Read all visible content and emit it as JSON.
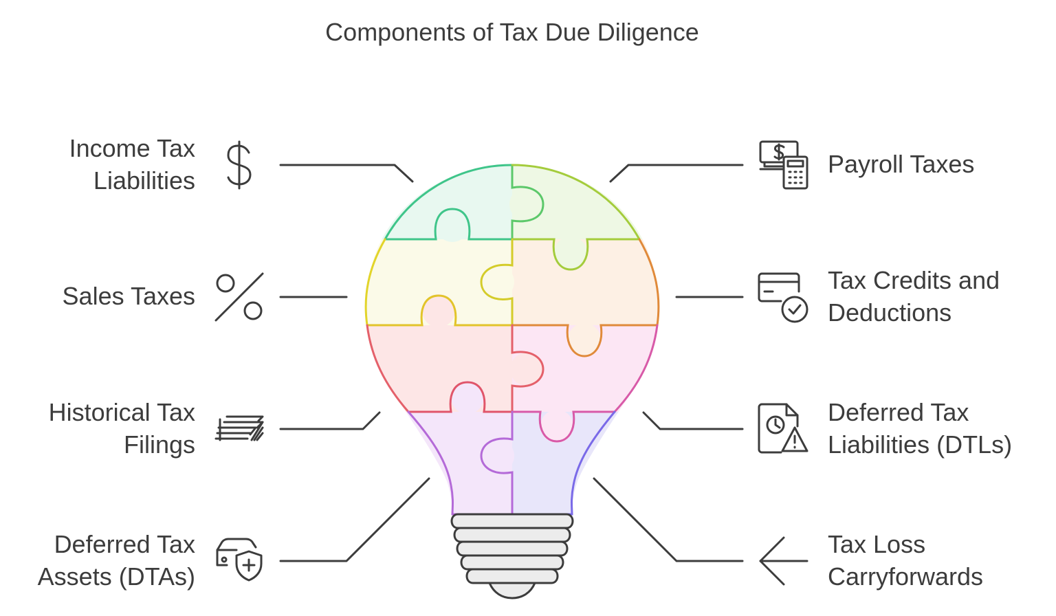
{
  "title": "Components of Tax Due Diligence",
  "left_items": [
    {
      "lines": [
        "Income Tax",
        "Liabilities"
      ],
      "icon": "dollar-sign-icon"
    },
    {
      "lines": [
        "Sales Taxes"
      ],
      "icon": "percent-icon"
    },
    {
      "lines": [
        "Historical Tax",
        "Filings"
      ],
      "icon": "stacked-money-icon"
    },
    {
      "lines": [
        "Deferred Tax",
        "Assets (DTAs)"
      ],
      "icon": "car-shield-icon"
    }
  ],
  "right_items": [
    {
      "lines": [
        "Payroll Taxes"
      ],
      "icon": "money-calculator-icon"
    },
    {
      "lines": [
        "Tax Credits and",
        "Deductions"
      ],
      "icon": "credit-card-check-icon"
    },
    {
      "lines": [
        "Deferred Tax",
        "Liabilities (DTLs)"
      ],
      "icon": "document-clock-warning-icon"
    },
    {
      "lines": [
        "Tax Loss",
        "Carryforwards"
      ],
      "icon": "arrow-left-icon"
    }
  ],
  "colors": {
    "text": "#3c3c3c",
    "connector": "#3c3c3c",
    "piece_green": "#e8f8f0",
    "piece_lime": "#eef8e4",
    "piece_yellow": "#fbfae8",
    "piece_peach": "#fdf0e4",
    "piece_red": "#fde6e6",
    "piece_pink": "#fce6f4",
    "piece_violet": "#f4e6fa",
    "piece_blue": "#e8e6fa"
  }
}
